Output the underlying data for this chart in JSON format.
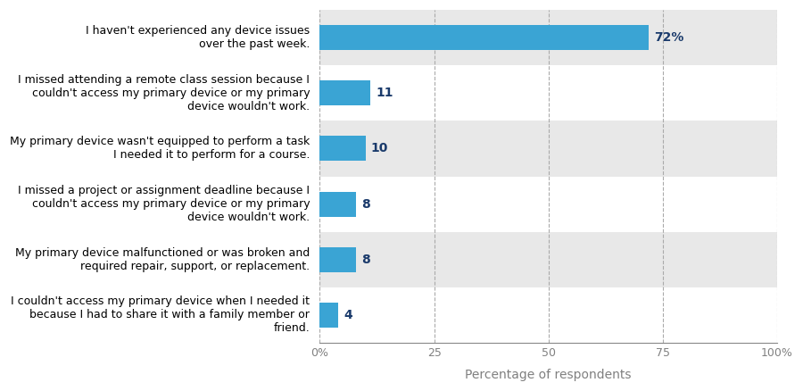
{
  "categories": [
    "I couldn't access my primary device when I needed it\nbecause I had to share it with a family member or\nfriend.",
    "My primary device malfunctioned or was broken and\nrequired repair, support, or replacement.",
    "I missed a project or assignment deadline because I\ncouldn't access my primary device or my primary\ndevice wouldn't work.",
    "My primary device wasn't equipped to perform a task\nI needed it to perform for a course.",
    "I missed attending a remote class session because I\ncouldn't access my primary device or my primary\ndevice wouldn't work.",
    "I haven't experienced any device issues\nover the past week."
  ],
  "values": [
    4,
    8,
    8,
    10,
    11,
    72
  ],
  "labels": [
    "4",
    "8",
    "8",
    "10",
    "11",
    "72%"
  ],
  "bar_color": "#3aa4d4",
  "label_color": "#1a3a6b",
  "row_bg_colors": [
    "#ffffff",
    "#e8e8e8",
    "#ffffff",
    "#e8e8e8",
    "#ffffff",
    "#e8e8e8"
  ],
  "xlabel": "Percentage of respondents",
  "xlim": [
    0,
    100
  ],
  "xticks": [
    0,
    25,
    50,
    75,
    100
  ],
  "xticklabels": [
    "0%",
    "25",
    "50",
    "75",
    "100%"
  ],
  "grid_color": "#aaaaaa",
  "bar_height": 0.45,
  "label_fontsize": 10,
  "tick_fontsize": 9,
  "xlabel_fontsize": 10,
  "ytick_fontsize": 9,
  "fig_bg": "#ffffff"
}
